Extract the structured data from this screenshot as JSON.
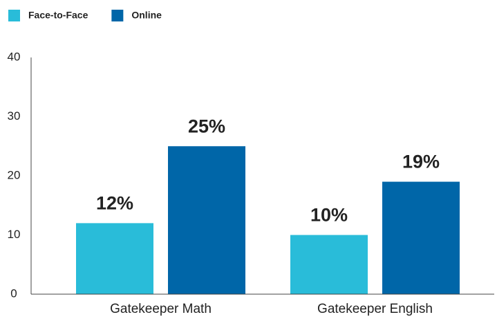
{
  "chart_data": {
    "type": "bar",
    "categories": [
      "Gatekeeper Math",
      "Gatekeeper English"
    ],
    "series": [
      {
        "name": "Face-to-Face",
        "color": "#29bcd9",
        "values": [
          12,
          10
        ],
        "value_labels": [
          "12%",
          "10%"
        ]
      },
      {
        "name": "Online",
        "color": "#0066a8",
        "values": [
          25,
          19
        ],
        "value_labels": [
          "25%",
          "19%"
        ]
      }
    ],
    "ylim": [
      0,
      40
    ],
    "yticks": [
      0,
      10,
      20,
      30,
      40
    ],
    "grid": false,
    "legend": "top-left"
  }
}
